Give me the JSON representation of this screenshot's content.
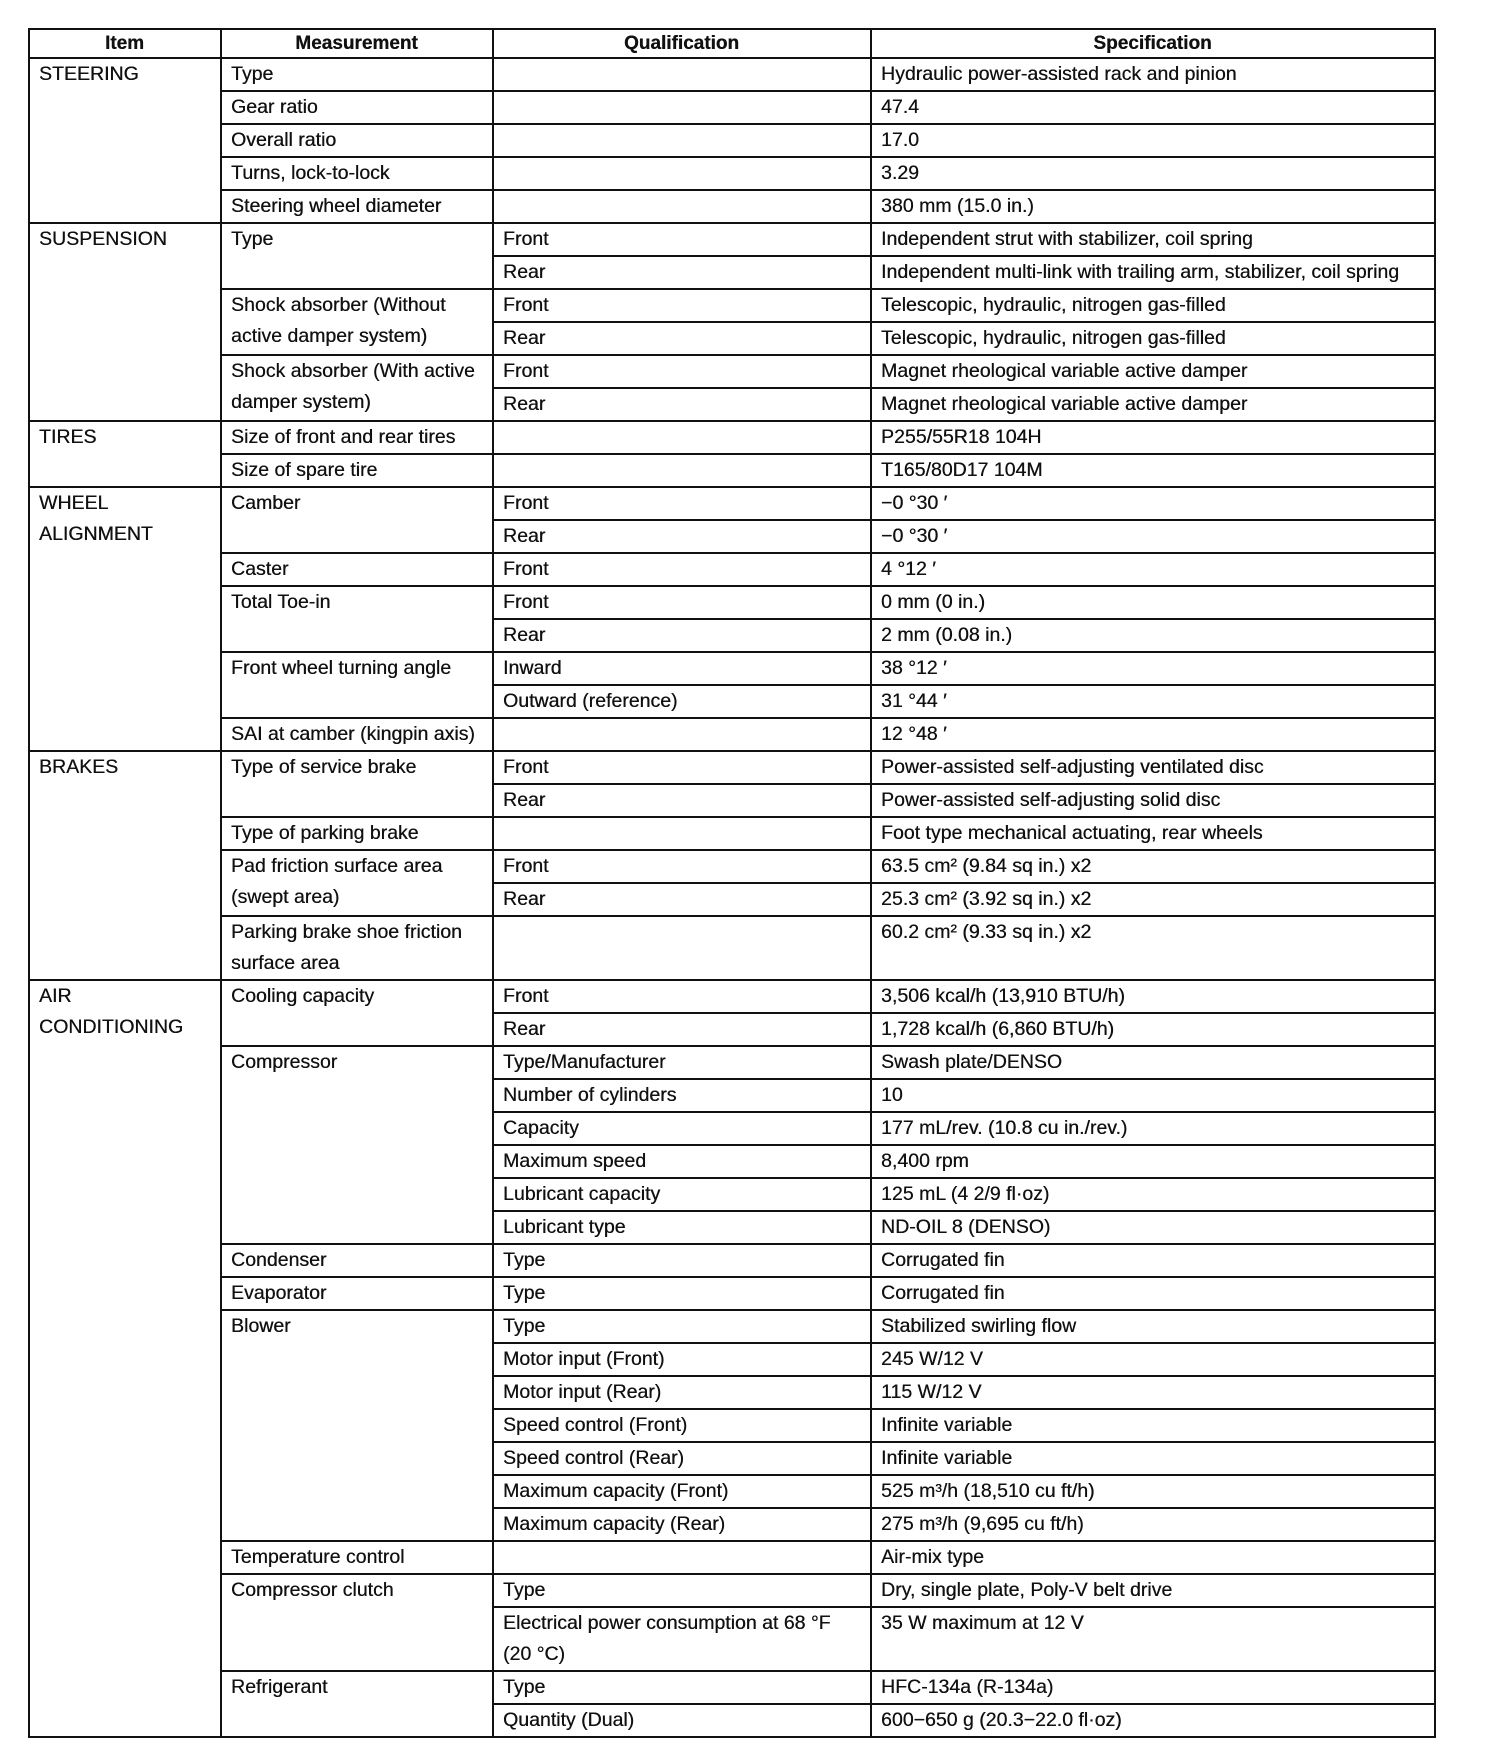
{
  "header": {
    "item": "Item",
    "measurement": "Measurement",
    "qualification": "Qualification",
    "specification": "Specification"
  },
  "sections": [
    {
      "item": "STEERING",
      "groups": [
        {
          "measurement": "Type",
          "rows": [
            {
              "qualification": "",
              "specification": "Hydraulic power-assisted rack and pinion"
            }
          ]
        },
        {
          "measurement": "Gear ratio",
          "rows": [
            {
              "qualification": "",
              "specification": "47.4"
            }
          ]
        },
        {
          "measurement": "Overall ratio",
          "rows": [
            {
              "qualification": "",
              "specification": "17.0"
            }
          ]
        },
        {
          "measurement": "Turns, lock-to-lock",
          "rows": [
            {
              "qualification": "",
              "specification": "3.29"
            }
          ]
        },
        {
          "measurement": "Steering wheel diameter",
          "rows": [
            {
              "qualification": "",
              "specification": "380 mm (15.0 in.)"
            }
          ]
        }
      ]
    },
    {
      "item": "SUSPENSION",
      "groups": [
        {
          "measurement": "Type",
          "rows": [
            {
              "qualification": "Front",
              "specification": "Independent strut with stabilizer, coil spring"
            },
            {
              "qualification": "Rear",
              "specification": "Independent multi-link with trailing arm, stabilizer, coil spring"
            }
          ]
        },
        {
          "measurement": "Shock absorber (Without active damper system)",
          "rows": [
            {
              "qualification": "Front",
              "specification": "Telescopic, hydraulic, nitrogen gas-filled"
            },
            {
              "qualification": "Rear",
              "specification": "Telescopic, hydraulic, nitrogen gas-filled"
            }
          ]
        },
        {
          "measurement": "Shock absorber (With active damper system)",
          "rows": [
            {
              "qualification": "Front",
              "specification": "Magnet rheological variable active damper"
            },
            {
              "qualification": "Rear",
              "specification": "Magnet rheological variable active damper"
            }
          ]
        }
      ]
    },
    {
      "item": "TIRES",
      "groups": [
        {
          "measurement": "Size of front and rear tires",
          "rows": [
            {
              "qualification": "",
              "specification": "P255/55R18 104H"
            }
          ]
        },
        {
          "measurement": "Size of spare tire",
          "rows": [
            {
              "qualification": "",
              "specification": "T165/80D17 104M"
            }
          ]
        }
      ]
    },
    {
      "item": "WHEEL\nALIGNMENT",
      "groups": [
        {
          "measurement": "Camber",
          "rows": [
            {
              "qualification": "Front",
              "specification": "−0 °30 ′"
            },
            {
              "qualification": "Rear",
              "specification": "−0 °30 ′"
            }
          ]
        },
        {
          "measurement": "Caster",
          "rows": [
            {
              "qualification": "Front",
              "specification": "4 °12 ′"
            }
          ]
        },
        {
          "measurement": "Total Toe-in",
          "rows": [
            {
              "qualification": "Front",
              "specification": "0 mm (0 in.)"
            },
            {
              "qualification": "Rear",
              "specification": "2 mm (0.08 in.)"
            }
          ]
        },
        {
          "measurement": "Front wheel turning angle",
          "rows": [
            {
              "qualification": "Inward",
              "specification": "38 °12 ′"
            },
            {
              "qualification": "Outward (reference)",
              "specification": "31 °44 ′"
            }
          ]
        },
        {
          "measurement": "SAI at camber (kingpin axis)",
          "rows": [
            {
              "qualification": "",
              "specification": "12 °48 ′"
            }
          ]
        }
      ]
    },
    {
      "item": "BRAKES",
      "groups": [
        {
          "measurement": "Type of service brake",
          "rows": [
            {
              "qualification": "Front",
              "specification": "Power-assisted self-adjusting ventilated disc"
            },
            {
              "qualification": "Rear",
              "specification": "Power-assisted self-adjusting solid disc"
            }
          ]
        },
        {
          "measurement": "Type of parking brake",
          "rows": [
            {
              "qualification": "",
              "specification": "Foot type mechanical actuating, rear wheels"
            }
          ]
        },
        {
          "measurement": "Pad friction surface area (swept area)",
          "rows": [
            {
              "qualification": "Front",
              "specification": "63.5 cm² (9.84 sq in.) x2"
            },
            {
              "qualification": "Rear",
              "specification": "25.3 cm² (3.92 sq in.) x2"
            }
          ]
        },
        {
          "measurement": "Parking brake shoe friction surface area",
          "rows": [
            {
              "qualification": "",
              "specification": "60.2 cm² (9.33 sq in.) x2"
            }
          ]
        }
      ]
    },
    {
      "item": "AIR\nCONDITIONING",
      "groups": [
        {
          "measurement": "Cooling capacity",
          "rows": [
            {
              "qualification": "Front",
              "specification": "3,506 kcal/h (13,910 BTU/h)"
            },
            {
              "qualification": "Rear",
              "specification": "1,728 kcal/h (6,860 BTU/h)"
            }
          ]
        },
        {
          "measurement": "Compressor",
          "rows": [
            {
              "qualification": "Type/Manufacturer",
              "specification": "Swash plate/DENSO"
            },
            {
              "qualification": "Number of cylinders",
              "specification": "10"
            },
            {
              "qualification": "Capacity",
              "specification": "177 mL/rev. (10.8 cu in./rev.)"
            },
            {
              "qualification": "Maximum speed",
              "specification": "8,400 rpm"
            },
            {
              "qualification": "Lubricant capacity",
              "specification": "125 mL (4 2/9 fl·oz)"
            },
            {
              "qualification": "Lubricant type",
              "specification": "ND-OIL 8 (DENSO)"
            }
          ]
        },
        {
          "measurement": "Condenser",
          "rows": [
            {
              "qualification": "Type",
              "specification": "Corrugated fin"
            }
          ]
        },
        {
          "measurement": "Evaporator",
          "rows": [
            {
              "qualification": "Type",
              "specification": "Corrugated fin"
            }
          ]
        },
        {
          "measurement": "Blower",
          "rows": [
            {
              "qualification": "Type",
              "specification": "Stabilized swirling flow"
            },
            {
              "qualification": "Motor input (Front)",
              "specification": "245 W/12 V"
            },
            {
              "qualification": "Motor input (Rear)",
              "specification": "115 W/12 V"
            },
            {
              "qualification": "Speed control (Front)",
              "specification": "Infinite variable"
            },
            {
              "qualification": "Speed control (Rear)",
              "specification": "Infinite variable"
            },
            {
              "qualification": "Maximum capacity (Front)",
              "specification": "525 m³/h (18,510 cu ft/h)"
            },
            {
              "qualification": "Maximum capacity (Rear)",
              "specification": "275 m³/h (9,695 cu ft/h)"
            }
          ]
        },
        {
          "measurement": "Temperature control",
          "rows": [
            {
              "qualification": "",
              "specification": "Air-mix type"
            }
          ]
        },
        {
          "measurement": "Compressor clutch",
          "rows": [
            {
              "qualification": "Type",
              "specification": "Dry, single plate, Poly-V belt drive"
            },
            {
              "qualification": "Electrical power consumption at 68 °F (20 °C)",
              "specification": "35 W maximum at 12 V"
            }
          ]
        },
        {
          "measurement": "Refrigerant",
          "rows": [
            {
              "qualification": "Type",
              "specification": "HFC-134a (R-134a)"
            },
            {
              "qualification": "Quantity (Dual)",
              "specification": "600−650 g (20.3−22.0 fl·oz)"
            }
          ]
        }
      ]
    }
  ]
}
